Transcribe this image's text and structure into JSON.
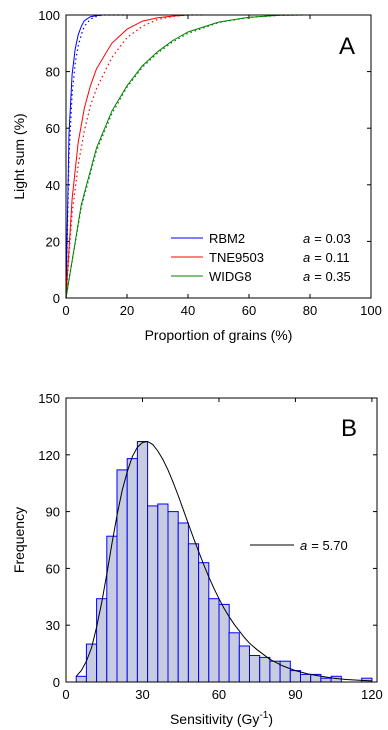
{
  "colors": {
    "rbm2": "#0000ff",
    "tne9503": "#ff0000",
    "widg8": "#008000",
    "bar_fill": "#c8cce0",
    "bar_edge": "#0000ff",
    "fit": "#000000"
  },
  "chart_data": [
    {
      "type": "line",
      "panel_label": "A",
      "xlabel": "Proportion of grains (%)",
      "ylabel": "Light sum (%)",
      "xlim": [
        0,
        100
      ],
      "ylim": [
        0,
        100
      ],
      "xticks": [
        0,
        20,
        40,
        60,
        80,
        100
      ],
      "yticks": [
        0,
        20,
        40,
        60,
        80,
        100
      ],
      "legend_position": "bottom-right",
      "series": [
        {
          "name": "RBM2",
          "a_label": "a",
          "a_value": "= 0.03",
          "color_key": "rbm2",
          "x": [
            0,
            1,
            2,
            3,
            4,
            5,
            6,
            8,
            10,
            12,
            15,
            20
          ],
          "y": [
            0,
            58,
            79,
            88,
            93,
            96,
            98,
            99.4,
            99.8,
            100,
            100,
            100
          ],
          "dotted_x": [
            0,
            1,
            2,
            3,
            4,
            5,
            6,
            8,
            10,
            12,
            15,
            20
          ],
          "dotted_y": [
            0,
            50,
            72,
            83,
            89,
            93,
            96,
            98.5,
            99.5,
            100,
            100,
            100
          ]
        },
        {
          "name": "TNE9503",
          "a_label": "a",
          "a_value": "= 0.11",
          "color_key": "tne9503",
          "x": [
            0,
            2,
            4,
            6,
            8,
            10,
            15,
            20,
            25,
            30,
            35,
            40,
            45
          ],
          "y": [
            0,
            35,
            55,
            67,
            75,
            81,
            90,
            95,
            97.8,
            99,
            99.6,
            100,
            100
          ],
          "dotted_x": [
            0,
            2,
            4,
            6,
            8,
            10,
            15,
            20,
            25,
            30,
            35,
            40,
            45
          ],
          "dotted_y": [
            0,
            30,
            47,
            59,
            68,
            74,
            85,
            92,
            96,
            98.4,
            99.5,
            100,
            100
          ]
        },
        {
          "name": "WIDG8",
          "a_label": "a",
          "a_value": "= 0.35",
          "color_key": "widg8",
          "x": [
            0,
            5,
            10,
            15,
            20,
            25,
            30,
            35,
            40,
            50,
            60,
            70,
            78
          ],
          "y": [
            0,
            33,
            53,
            66,
            75,
            82,
            87,
            91,
            94,
            97.5,
            99.2,
            99.9,
            100
          ],
          "dotted_x": [
            0,
            5,
            10,
            15,
            20,
            25,
            30,
            35,
            40,
            50,
            60,
            70,
            78
          ],
          "dotted_y": [
            0,
            32,
            52,
            65,
            74.5,
            81.5,
            86.5,
            90.5,
            93.5,
            97.3,
            99.1,
            99.9,
            100
          ]
        }
      ]
    },
    {
      "type": "bar",
      "panel_label": "B",
      "xlabel_main": "Sensitivity (Gy",
      "xlabel_sup": "-1",
      "xlabel_end": ")",
      "ylabel": "Frequency",
      "xlim": [
        0,
        122
      ],
      "ylim": [
        0,
        150
      ],
      "xticks": [
        0,
        30,
        60,
        90,
        120
      ],
      "yticks": [
        0,
        30,
        60,
        90,
        120,
        150
      ],
      "legend_position": "right",
      "bin_width": 4,
      "bin_starts": [
        4,
        8,
        12,
        16,
        20,
        24,
        28,
        32,
        36,
        40,
        44,
        48,
        52,
        56,
        60,
        64,
        68,
        72,
        76,
        80,
        84,
        88,
        92,
        96,
        100,
        104,
        108,
        112,
        116
      ],
      "values": [
        3,
        20,
        44,
        77,
        112,
        118,
        127,
        93,
        94,
        90,
        84,
        73,
        63,
        44,
        41,
        26,
        19,
        14,
        13,
        11,
        11,
        6,
        4,
        4,
        2,
        3,
        0,
        0,
        2
      ],
      "fit": {
        "name": "a = 5.70",
        "a_label": "a",
        "a_value": "= 5.70",
        "x": [
          4,
          6,
          8,
          10,
          12,
          14,
          16,
          18,
          20,
          22,
          24,
          26,
          28,
          30,
          32,
          34,
          36,
          38,
          40,
          42,
          44,
          46,
          48,
          50,
          52,
          54,
          56,
          58,
          60,
          62,
          64,
          66,
          68,
          70,
          72,
          75,
          80,
          85,
          90,
          95,
          100,
          105,
          110,
          115,
          120
        ],
        "y": [
          3,
          6,
          11,
          18,
          29,
          42,
          57,
          73,
          88,
          101,
          111,
          119,
          124,
          126.5,
          127,
          125.5,
          122,
          117.5,
          112,
          105.5,
          98.5,
          91,
          83.5,
          76,
          69,
          62,
          55.5,
          49.5,
          44,
          39,
          34.5,
          30.5,
          27,
          23.5,
          20.5,
          17,
          12,
          8.5,
          6,
          4.2,
          3,
          2,
          1.3,
          0.9,
          0.6
        ]
      }
    }
  ]
}
